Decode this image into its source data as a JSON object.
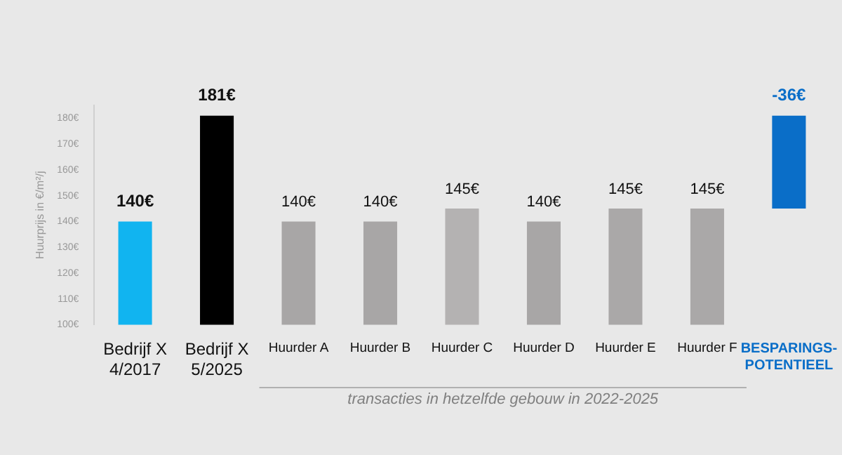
{
  "chart_data": {
    "type": "bar",
    "categories": [
      "Bedrijf X\n4/2017",
      "Bedrijf X\n5/2025",
      "Huurder A",
      "Huurder B",
      "Huurder C",
      "Huurder D",
      "Huurder E",
      "Huurder F",
      "BESPARINGS-\nPOTENTIEEL"
    ],
    "values": [
      140,
      181,
      140,
      140,
      145,
      140,
      145,
      145,
      -36
    ],
    "base": [
      null,
      null,
      null,
      null,
      null,
      null,
      null,
      null,
      181
    ],
    "colors": [
      "#11b4f0",
      "#000000",
      "#a8a6a6",
      "#a8a6a6",
      "#b4b2b2",
      "#a8a6a6",
      "#aaa8a8",
      "#aaa8a8",
      "#0a6ec8"
    ],
    "value_labels": [
      "140€",
      "181€",
      "140€",
      "140€",
      "145€",
      "140€",
      "145€",
      "145€",
      "-36€"
    ],
    "ylabel": "Huurprijs in €/m²/j",
    "ylim": [
      100,
      185
    ],
    "yticks": [
      {
        "value": 100,
        "label": "100€"
      },
      {
        "value": 110,
        "label": "110€"
      },
      {
        "value": 120,
        "label": "120€"
      },
      {
        "value": 130,
        "label": "130€"
      },
      {
        "value": 140,
        "label": "140€"
      },
      {
        "value": 150,
        "label": "150€"
      },
      {
        "value": 160,
        "label": "160€"
      },
      {
        "value": 170,
        "label": "170€"
      },
      {
        "value": 180,
        "label": "180€"
      }
    ],
    "annotations": [
      "transacties in hetzelfde gebouw in 2022-2025"
    ],
    "grid": false,
    "legend": false
  }
}
